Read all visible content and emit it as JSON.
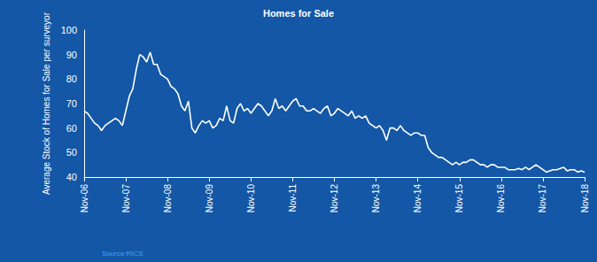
{
  "chart_data": {
    "type": "line",
    "title": "Homes for Sale",
    "y_label": "Average Stock of Homes for Sale per surveyor",
    "annotations": [
      "Source:RICS"
    ],
    "color": "#ffffff",
    "grid": false,
    "ylim": [
      40,
      100
    ],
    "yticks": [
      40,
      50,
      60,
      70,
      80,
      90,
      100
    ],
    "categories": [
      "Nov-06",
      null,
      null,
      null,
      null,
      null,
      null,
      null,
      null,
      null,
      null,
      null,
      "Nov-07",
      null,
      null,
      null,
      null,
      null,
      null,
      null,
      null,
      null,
      null,
      null,
      "Nov-08",
      null,
      null,
      null,
      null,
      null,
      null,
      null,
      null,
      null,
      null,
      null,
      "Nov-09",
      null,
      null,
      null,
      null,
      null,
      null,
      null,
      null,
      null,
      null,
      null,
      "Nov-10",
      null,
      null,
      null,
      null,
      null,
      null,
      null,
      null,
      null,
      null,
      null,
      "Nov-11",
      null,
      null,
      null,
      null,
      null,
      null,
      null,
      null,
      null,
      null,
      null,
      "Nov-12",
      null,
      null,
      null,
      null,
      null,
      null,
      null,
      null,
      null,
      null,
      null,
      "Nov-13",
      null,
      null,
      null,
      null,
      null,
      null,
      null,
      null,
      null,
      null,
      null,
      "Nov-14",
      null,
      null,
      null,
      null,
      null,
      null,
      null,
      null,
      null,
      null,
      null,
      "Nov-15",
      null,
      null,
      null,
      null,
      null,
      null,
      null,
      null,
      null,
      null,
      null,
      "Nov-16",
      null,
      null,
      null,
      null,
      null,
      null,
      null,
      null,
      null,
      null,
      null,
      "Nov-17",
      null,
      null,
      null,
      null,
      null,
      null,
      null,
      null,
      null,
      null,
      null,
      "Nov-18"
    ],
    "values": [
      67,
      66,
      64,
      62,
      61,
      59,
      61,
      62,
      63,
      64,
      63,
      61,
      67,
      73,
      76,
      84,
      90,
      89,
      87,
      91,
      86,
      86,
      82,
      81,
      80,
      77,
      76,
      74,
      69,
      67,
      71,
      60,
      58,
      61,
      63,
      62,
      63,
      60,
      61,
      64,
      63,
      69,
      63,
      62,
      68,
      70,
      67,
      68,
      66,
      68,
      70,
      69,
      67,
      65,
      67,
      72,
      68,
      69,
      67,
      69,
      71,
      72,
      69,
      69,
      67,
      67,
      68,
      67,
      66,
      68,
      69,
      65,
      66,
      68,
      67,
      66,
      65,
      67,
      64,
      65,
      64,
      65,
      62,
      61,
      60,
      61,
      59,
      55,
      60,
      60,
      59,
      61,
      59,
      58,
      57,
      58,
      58,
      57,
      57,
      52,
      50,
      49,
      48,
      48,
      47,
      46,
      45,
      46,
      45,
      46,
      46,
      47,
      47,
      46,
      45,
      45,
      44,
      45,
      45,
      44,
      44,
      44,
      43,
      43,
      43,
      43.5,
      43,
      44,
      43,
      44,
      45,
      44,
      43,
      42,
      42.5,
      43,
      43,
      43.5,
      44,
      42.5,
      43,
      43,
      42,
      42.5,
      42
    ]
  }
}
